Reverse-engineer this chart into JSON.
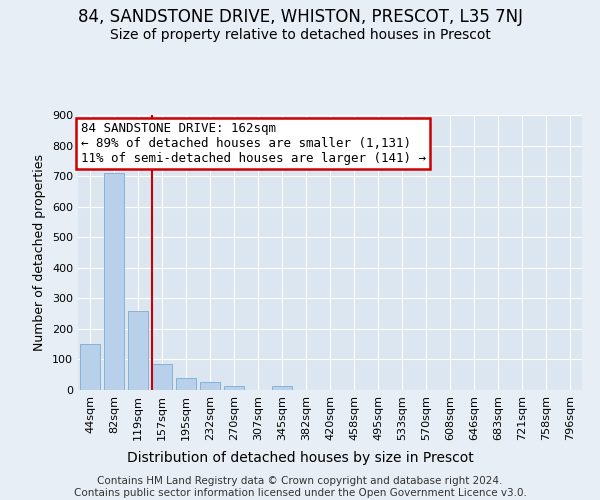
{
  "title": "84, SANDSTONE DRIVE, WHISTON, PRESCOT, L35 7NJ",
  "subtitle": "Size of property relative to detached houses in Prescot",
  "xlabel": "Distribution of detached houses by size in Prescot",
  "ylabel": "Number of detached properties",
  "categories": [
    "44sqm",
    "82sqm",
    "119sqm",
    "157sqm",
    "195sqm",
    "232sqm",
    "270sqm",
    "307sqm",
    "345sqm",
    "382sqm",
    "420sqm",
    "458sqm",
    "495sqm",
    "533sqm",
    "570sqm",
    "608sqm",
    "646sqm",
    "683sqm",
    "721sqm",
    "758sqm",
    "796sqm"
  ],
  "values": [
    150,
    710,
    260,
    85,
    40,
    25,
    13,
    0,
    13,
    0,
    0,
    0,
    0,
    0,
    0,
    0,
    0,
    0,
    0,
    0,
    0
  ],
  "bar_color": "#b8d0ea",
  "bar_edgecolor": "#7aadd4",
  "vline_color": "#cc0000",
  "vline_x_index": 3,
  "annotation_text_line1": "84 SANDSTONE DRIVE: 162sqm",
  "annotation_text_line2": "← 89% of detached houses are smaller (1,131)",
  "annotation_text_line3": "11% of semi-detached houses are larger (141) →",
  "annotation_box_facecolor": "#ffffff",
  "annotation_box_edgecolor": "#cc0000",
  "ylim": [
    0,
    900
  ],
  "yticks": [
    0,
    100,
    200,
    300,
    400,
    500,
    600,
    700,
    800,
    900
  ],
  "footer_line1": "Contains HM Land Registry data © Crown copyright and database right 2024.",
  "footer_line2": "Contains public sector information licensed under the Open Government Licence v3.0.",
  "background_color": "#e8eef5",
  "plot_bg_color": "#dce6f0",
  "grid_color": "#ffffff",
  "title_fontsize": 12,
  "subtitle_fontsize": 10,
  "xlabel_fontsize": 10,
  "ylabel_fontsize": 9,
  "tick_fontsize": 8,
  "annotation_fontsize": 9,
  "footer_fontsize": 7.5
}
